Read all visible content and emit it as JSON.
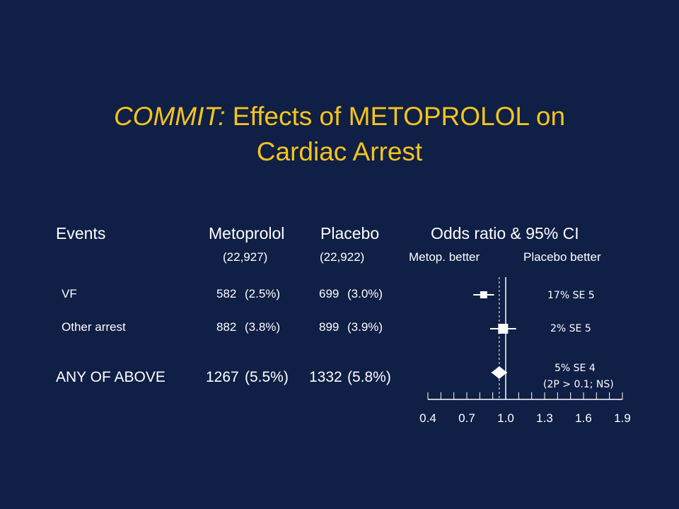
{
  "title": {
    "italic_part": "COMMIT:",
    "rest_line1": " Effects of METOPROLOL on",
    "line2": "Cardiac Arrest"
  },
  "table": {
    "headers": {
      "events": "Events",
      "metoprolol": "Metoprolol",
      "placebo": "Placebo",
      "odds": "Odds ratio & 95% CI"
    },
    "subheaders": {
      "metoprolol_n": "(22,927)",
      "placebo_n": "(22,922)",
      "metop_better": "Metop. better",
      "placebo_better": "Placebo better"
    },
    "rows": [
      {
        "label": "VF",
        "met_n": "582",
        "met_pct": "(2.5%)",
        "pla_n": "699",
        "pla_pct": "(3.0%)",
        "annotation": "17% SE 5",
        "annotation2": ""
      },
      {
        "label": "Other arrest",
        "met_n": "882",
        "met_pct": "(3.8%)",
        "pla_n": "899",
        "pla_pct": "(3.9%)",
        "annotation": "2% SE 5",
        "annotation2": ""
      },
      {
        "label": "ANY OF ABOVE",
        "met_n": "1267",
        "met_pct": "(5.5%)",
        "pla_n": "1332",
        "pla_pct": "(5.8%)",
        "annotation": "5% SE 4",
        "annotation2": "(2P > 0.1; NS)"
      }
    ]
  },
  "chart_data": {
    "type": "forest",
    "x_ticks": [
      "0.4",
      "0.7",
      "1.0",
      "1.3",
      "1.6",
      "1.9"
    ],
    "xlim": [
      0.4,
      1.9
    ],
    "reference_line": 1.0,
    "overall_line": 0.95,
    "points": [
      {
        "label": "VF",
        "or": 0.83,
        "ci_low": 0.75,
        "ci_high": 0.91,
        "marker": "square",
        "size": "small"
      },
      {
        "label": "Other arrest",
        "or": 0.98,
        "ci_low": 0.88,
        "ci_high": 1.08,
        "marker": "square",
        "size": "large"
      },
      {
        "label": "ANY OF ABOVE",
        "or": 0.95,
        "ci_low": 0.89,
        "ci_high": 1.01,
        "marker": "diamond",
        "size": "large"
      }
    ]
  },
  "colors": {
    "background": "#0f1f45",
    "title": "#f5c41c",
    "text": "#ffffff"
  }
}
